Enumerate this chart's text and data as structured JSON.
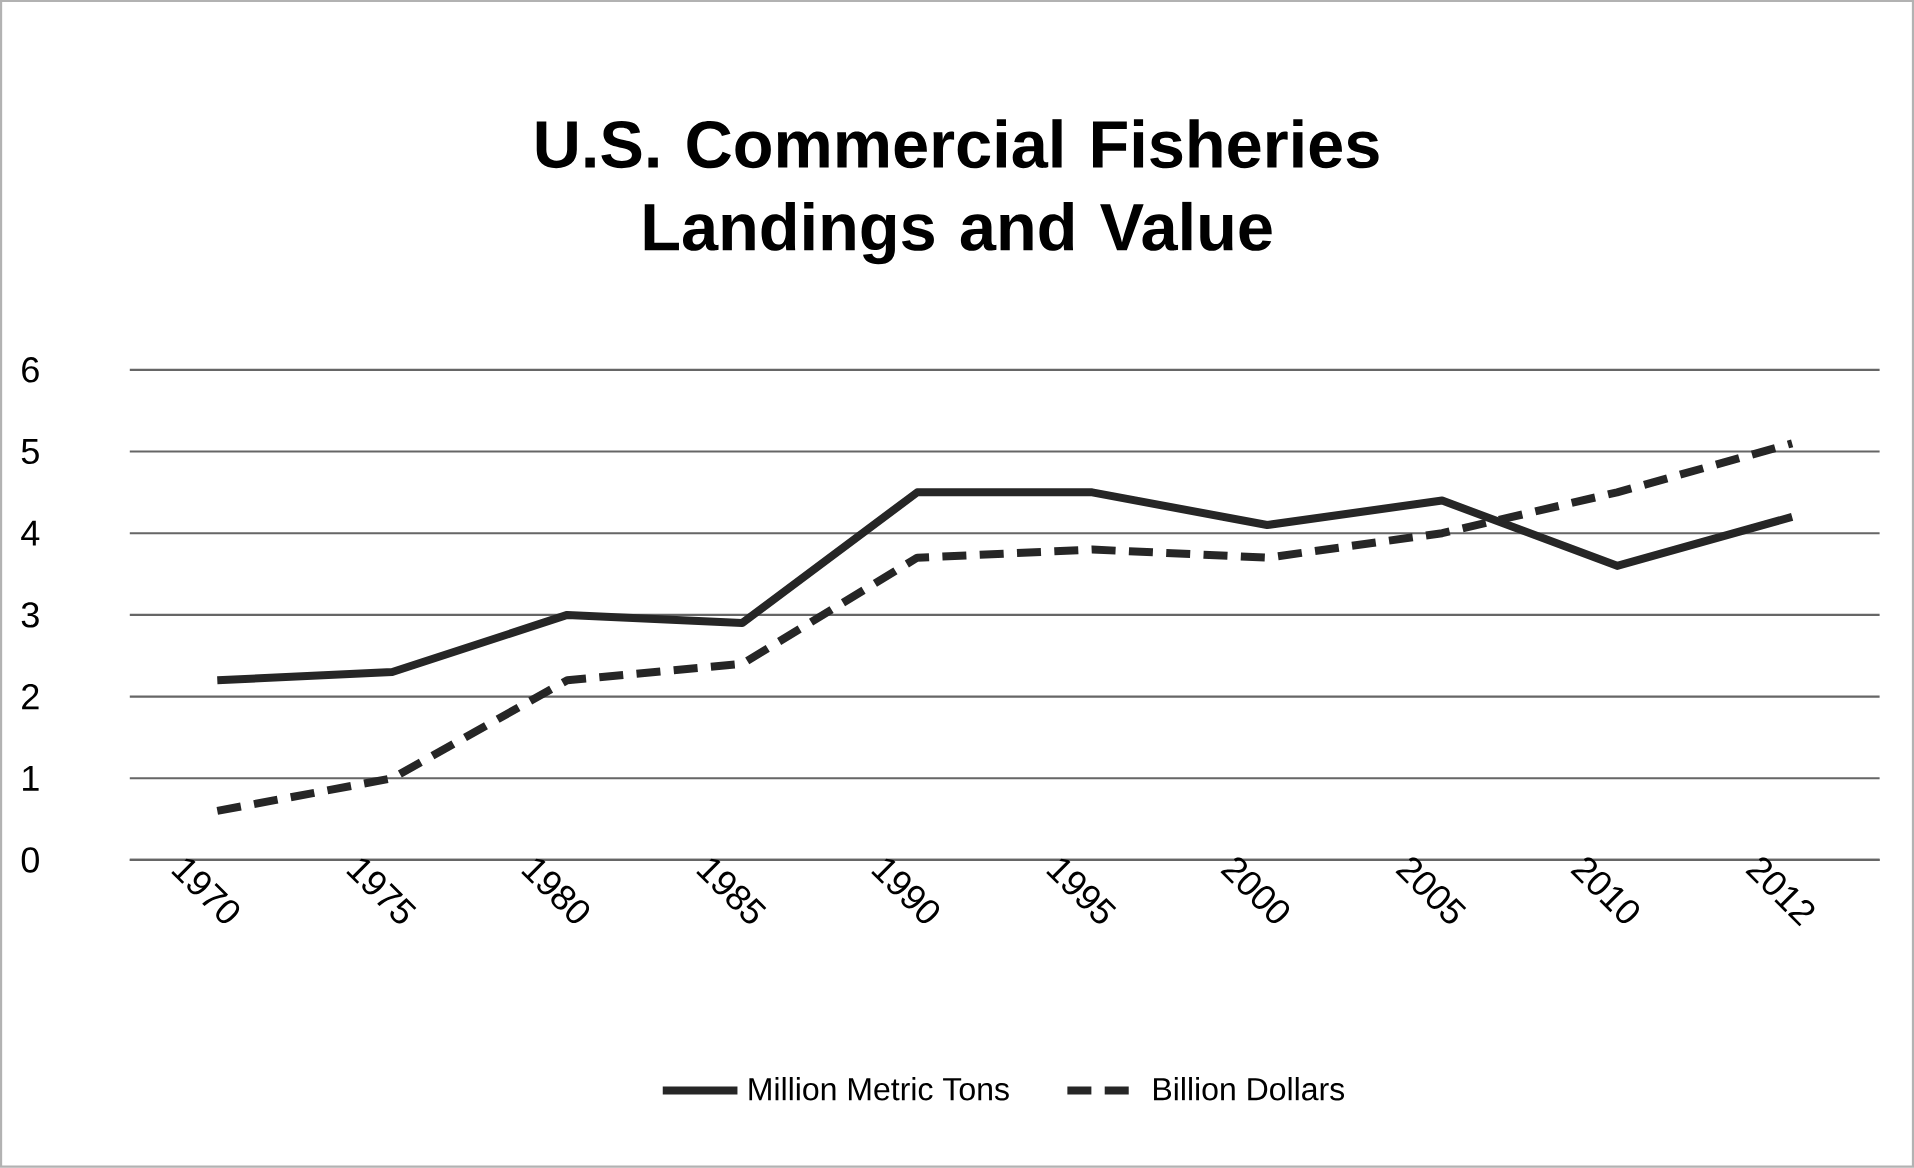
{
  "chart_data": {
    "type": "line",
    "title": "U.S. Commercial Fisheries Landings and Value",
    "categories": [
      "1970",
      "1975",
      "1980",
      "1985",
      "1990",
      "1995",
      "2000",
      "2005",
      "2010",
      "2012"
    ],
    "series": [
      {
        "name": "Million Metric Tons",
        "color": "#262626",
        "line_style": "solid",
        "values": [
          2.2,
          2.3,
          3.0,
          2.9,
          4.5,
          4.5,
          4.1,
          4.4,
          3.6,
          4.2
        ]
      },
      {
        "name": "Billion Dollars",
        "color": "#262626",
        "line_style": "dashed",
        "values": [
          0.6,
          1.0,
          2.2,
          2.4,
          3.7,
          3.8,
          3.7,
          4.0,
          4.5,
          5.1
        ]
      }
    ],
    "ylim": [
      0,
      6
    ],
    "yticks": [
      0,
      1,
      2,
      3,
      4,
      5,
      6
    ],
    "grid": "y",
    "legend": "bottom",
    "marker": "none"
  }
}
